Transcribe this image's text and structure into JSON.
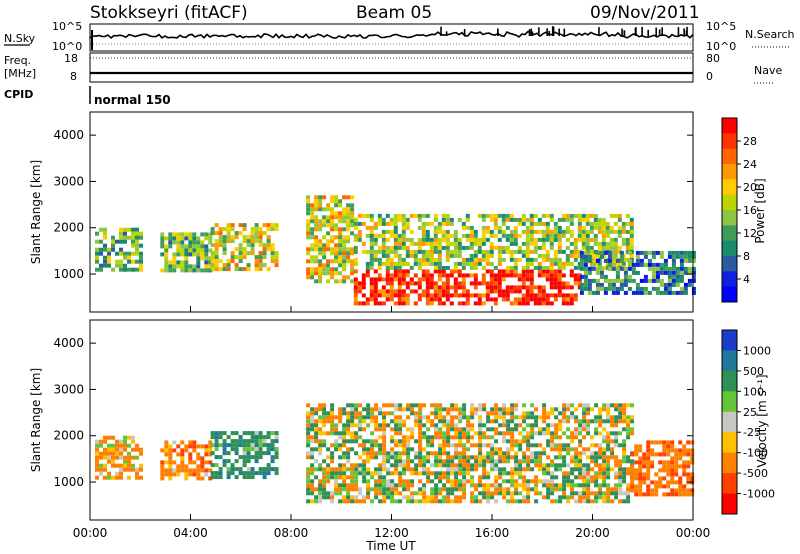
{
  "header": {
    "station": "Stokkseyri (fitACF)",
    "beam": "Beam 05",
    "date": "09/Nov/2011"
  },
  "strip_labels": {
    "nsky": "N.Sky",
    "freq_line1": "Freq.",
    "freq_line2": "[MHz]",
    "cpid": "CPID",
    "nsearch": "N.Search",
    "nave": "Nave",
    "cpid_value": "normal 150"
  },
  "strip_ticks": {
    "noise_left_top": "10^5",
    "noise_left_bottom": "10^0",
    "noise_right_top": "10^5",
    "noise_right_bottom": "10^0",
    "freq_left_top": "18",
    "freq_left_bottom": "8",
    "nave_right_top": "80",
    "nave_right_bottom": "0"
  },
  "colorbars": {
    "power": {
      "label": "Power [dB]",
      "ticks": [
        "28",
        "24",
        "20",
        "16",
        "12",
        "8",
        "4"
      ],
      "colors": [
        "#ff0000",
        "#ff3300",
        "#ff6600",
        "#ff9900",
        "#ffcc00",
        "#bcd400",
        "#8fc641",
        "#3f9d5a",
        "#1a8a6e",
        "#2a5aa0",
        "#1020e0",
        "#0000ff"
      ]
    },
    "velocity": {
      "label": "Velocity [m s⁻¹]",
      "ticks": [
        "1000",
        "500",
        "100",
        "25",
        "-25",
        "-100",
        "-500",
        "-1000"
      ],
      "colors": [
        "#1a3ec8",
        "#1f7a9a",
        "#2f8f55",
        "#63c53a",
        "#c8c8c0",
        "#ffc000",
        "#ff8000",
        "#ff4000",
        "#ff0000"
      ]
    }
  },
  "axes": {
    "ylabel": "Slant Range [km]",
    "xlabel": "Time UT",
    "yticks": [
      "4000",
      "3000",
      "2000",
      "1000"
    ],
    "xticks": [
      "00:00",
      "04:00",
      "08:00",
      "12:00",
      "16:00",
      "20:00",
      "00:00"
    ]
  },
  "chart_data": [
    {
      "type": "heatmap",
      "name": "Power",
      "ylabel": "Slant Range [km]",
      "xlabel": "Time UT",
      "ylim": [
        180,
        4500
      ],
      "xlim": [
        0,
        24
      ],
      "colorbar": {
        "label": "Power [dB]",
        "ticks": [
          28,
          24,
          20,
          16,
          12,
          8,
          4
        ]
      },
      "echo_regions": [
        {
          "t0": 0.2,
          "t1": 2.0,
          "r0": 1100,
          "r1": 2000,
          "dB": 14
        },
        {
          "t0": 2.8,
          "t1": 4.8,
          "r0": 1100,
          "r1": 1900,
          "dB": 14
        },
        {
          "t0": 4.8,
          "t1": 7.5,
          "r0": 1100,
          "r1": 2100,
          "dB": 18
        },
        {
          "t0": 8.6,
          "t1": 10.5,
          "r0": 800,
          "r1": 2700,
          "dB": 18
        },
        {
          "t0": 10.5,
          "t1": 19.5,
          "r0": 400,
          "r1": 1100,
          "dB": 28
        },
        {
          "t0": 10.5,
          "t1": 21.5,
          "r0": 1100,
          "r1": 2300,
          "dB": 16
        },
        {
          "t0": 19.5,
          "t1": 24.0,
          "r0": 600,
          "r1": 1500,
          "dB": 10
        }
      ]
    },
    {
      "type": "heatmap",
      "name": "Velocity",
      "ylabel": "Slant Range [km]",
      "xlabel": "Time UT",
      "ylim": [
        180,
        4500
      ],
      "xlim": [
        0,
        24
      ],
      "colorbar": {
        "label": "Velocity [m s⁻¹]",
        "ticks": [
          1000,
          500,
          100,
          25,
          -25,
          -100,
          -500,
          -1000
        ]
      },
      "echo_regions": [
        {
          "t0": 0.2,
          "t1": 2.0,
          "r0": 1100,
          "r1": 2000,
          "v": -200
        },
        {
          "t0": 2.8,
          "t1": 4.8,
          "r0": 1100,
          "r1": 1900,
          "v": -300
        },
        {
          "t0": 4.8,
          "t1": 7.5,
          "r0": 1100,
          "r1": 2100,
          "v": 300
        },
        {
          "t0": 8.6,
          "t1": 21.5,
          "r0": 600,
          "r1": 2700,
          "v": 0
        },
        {
          "t0": 21.5,
          "t1": 24.0,
          "r0": 700,
          "r1": 1900,
          "v": -400
        }
      ]
    }
  ]
}
